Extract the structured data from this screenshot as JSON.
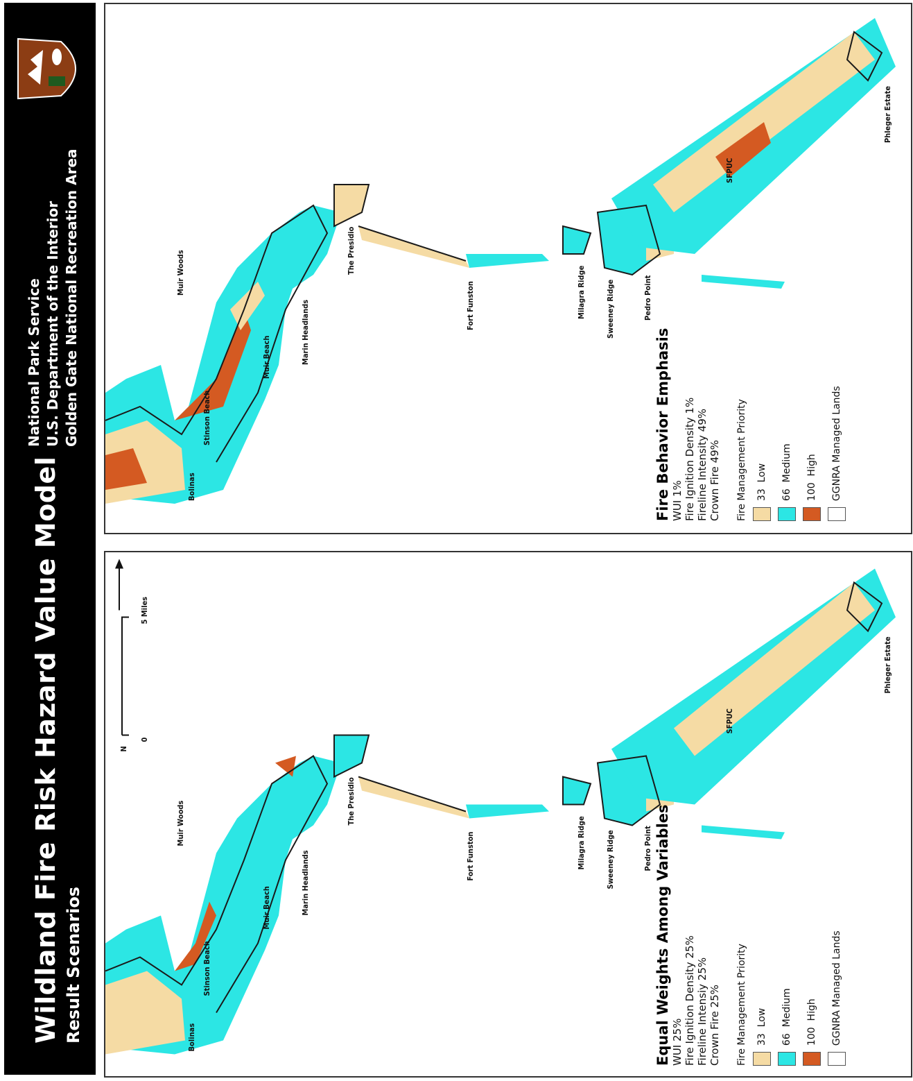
{
  "header": {
    "title": "Wildland Fire Risk Hazard Value Model",
    "subtitle": "Result Scenarios",
    "agency_lines": [
      "National Park Service",
      "U.S. Department of the Interior",
      "Golden Gate National Recreation Area"
    ],
    "logo": "nps-arrowhead-logo"
  },
  "colors": {
    "low": "#f5dba4",
    "medium": "#2ce6e4",
    "high": "#d45a22",
    "boundary": "#1a1a1a"
  },
  "places": {
    "bolinas": "Bolinas",
    "stinson": "Stinson Beach",
    "muir_woods": "Muir Woods",
    "muir_beach": "Muir Beach",
    "marin": "Marin Headlands",
    "presidio": "The Presidio",
    "funston": "Fort Funston",
    "milagra": "Milagra Ridge",
    "sweeney": "Sweeney Ridge",
    "pedro": "Pedro Point",
    "phleger": "Phleger Estate",
    "sfpuc": "SFPUC"
  },
  "scale_bar": {
    "zero": "0",
    "five": "5 Miles",
    "north": "N"
  },
  "panels": {
    "a": {
      "scenario_title": "Fire Behavior Emphasis",
      "weights": [
        "WUI 1%",
        "Fire Ignition Density 1%",
        "Fireline Intensity 49%",
        "Crown Fire 49%"
      ]
    },
    "b": {
      "scenario_title": "Equal Weights Among Variables",
      "weights": [
        "WUI 25%",
        "Fire Ignition Density 25%",
        "Fireline Intensiy 25%",
        "Crown Fire 25%"
      ]
    }
  },
  "legend": {
    "heading": "Fire Management Priority",
    "items": [
      {
        "value": "33",
        "label": "Low"
      },
      {
        "value": "66",
        "label": "Medium"
      },
      {
        "value": "100",
        "label": "High"
      }
    ],
    "boundary_label": "GGNRA Managed Lands"
  }
}
